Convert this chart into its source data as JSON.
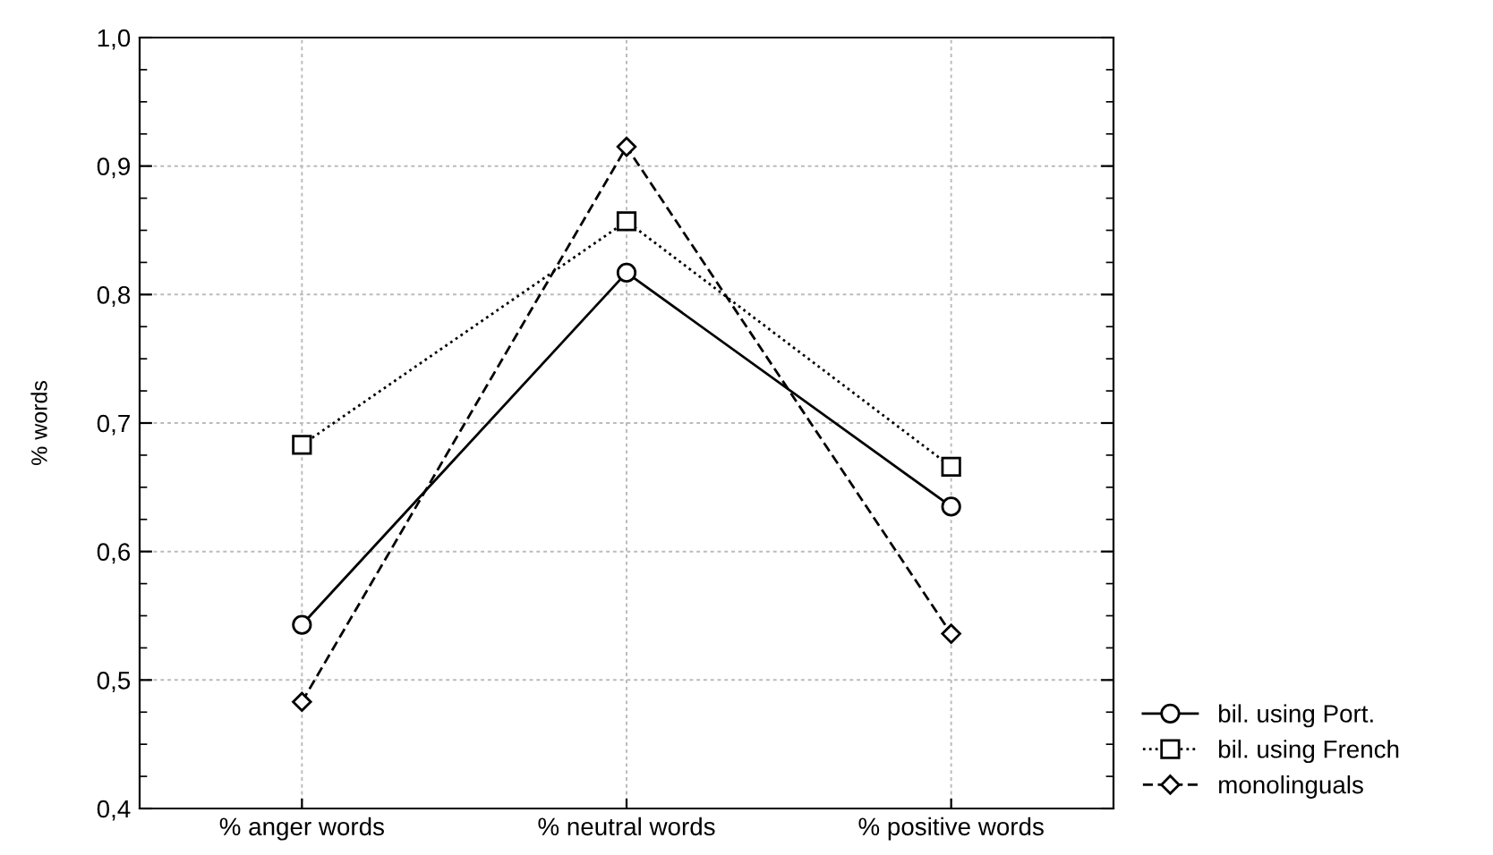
{
  "chart_data": {
    "type": "line",
    "ylabel": "% words",
    "categories": [
      "% anger words",
      "% neutral words",
      "% positive words"
    ],
    "series": [
      {
        "name": "bil. using Port.",
        "color": "#000000",
        "marker": "circle",
        "line_style": "solid",
        "values": [
          0.543,
          0.817,
          0.635
        ]
      },
      {
        "name": "bil. using French",
        "color": "#000000",
        "marker": "square",
        "line_style": "dotted",
        "values": [
          0.683,
          0.857,
          0.666
        ]
      },
      {
        "name": "monolinguals",
        "color": "#000000",
        "marker": "diamond",
        "line_style": "dashed",
        "values": [
          0.483,
          0.915,
          0.536
        ]
      }
    ],
    "ylim": [
      0.4,
      1.0
    ],
    "yticks": [
      {
        "value": 0.4,
        "label": "0,4"
      },
      {
        "value": 0.5,
        "label": "0,5"
      },
      {
        "value": 0.6,
        "label": "0,6"
      },
      {
        "value": 0.7,
        "label": "0,7"
      },
      {
        "value": 0.8,
        "label": "0,8"
      },
      {
        "value": 0.9,
        "label": "0,9"
      },
      {
        "value": 1.0,
        "label": "1,0"
      }
    ],
    "grid": true,
    "legend": "bottom right"
  }
}
